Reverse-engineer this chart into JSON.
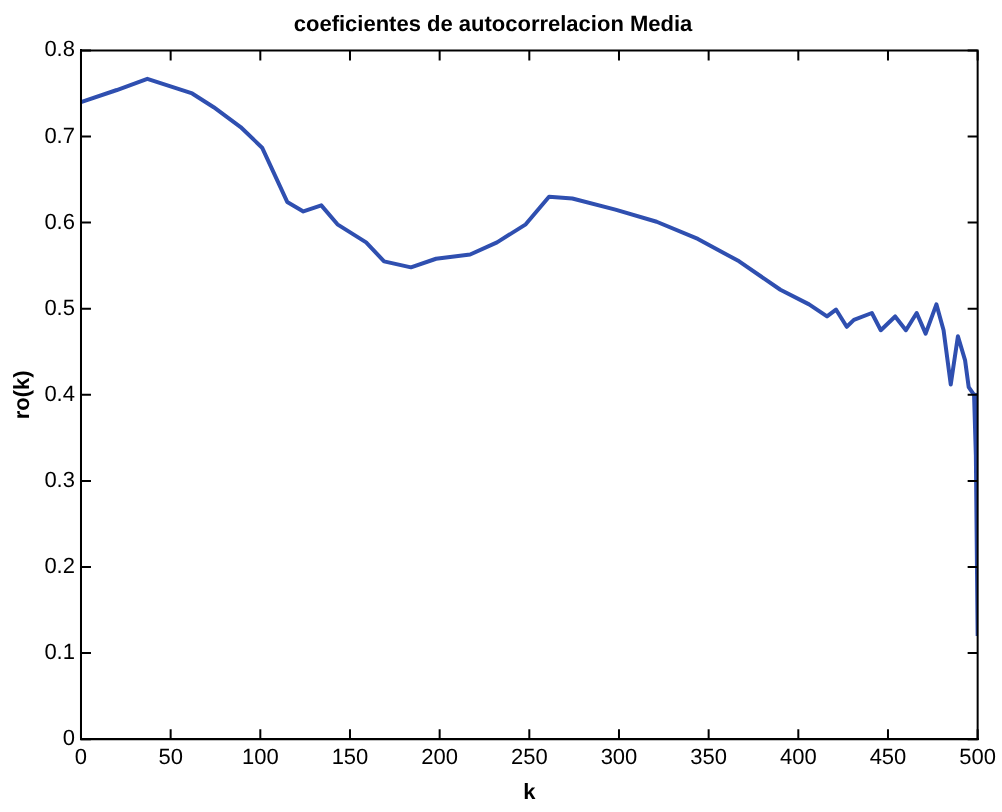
{
  "chart_data": {
    "type": "line",
    "title": "coeficientes de autocorrelacion Media",
    "xlabel": "k",
    "ylabel": "ro(k)",
    "x": [
      0,
      20,
      37,
      62,
      74,
      89,
      101,
      115,
      124,
      134,
      143,
      159,
      169,
      184,
      198,
      217,
      232,
      248,
      261,
      274,
      298,
      321,
      344,
      367,
      390,
      406,
      416,
      421,
      427,
      431,
      441,
      446,
      454,
      460,
      466,
      471,
      477,
      481,
      485,
      489,
      493,
      495,
      498,
      499,
      500
    ],
    "series": [
      {
        "color": "#2f4fb0",
        "values": [
          0.74,
          0.754,
          0.767,
          0.75,
          0.734,
          0.711,
          0.687,
          0.624,
          0.613,
          0.62,
          0.598,
          0.577,
          0.555,
          0.548,
          0.558,
          0.563,
          0.577,
          0.598,
          0.63,
          0.628,
          0.615,
          0.601,
          0.581,
          0.555,
          0.522,
          0.505,
          0.491,
          0.499,
          0.479,
          0.487,
          0.495,
          0.475,
          0.491,
          0.475,
          0.495,
          0.471,
          0.505,
          0.475,
          0.412,
          0.468,
          0.44,
          0.409,
          0.4,
          0.33,
          0.12
        ]
      }
    ],
    "xlim": [
      0,
      500
    ],
    "xticks": [
      0,
      50,
      100,
      150,
      200,
      250,
      300,
      350,
      400,
      450,
      500
    ],
    "ylim": [
      0,
      0.8
    ],
    "yticks": [
      0,
      0.1,
      0.2,
      0.3,
      0.4,
      0.5,
      0.6,
      0.7,
      0.8
    ],
    "grid": false,
    "legend": false,
    "marker": "none",
    "line_style": "solid"
  }
}
